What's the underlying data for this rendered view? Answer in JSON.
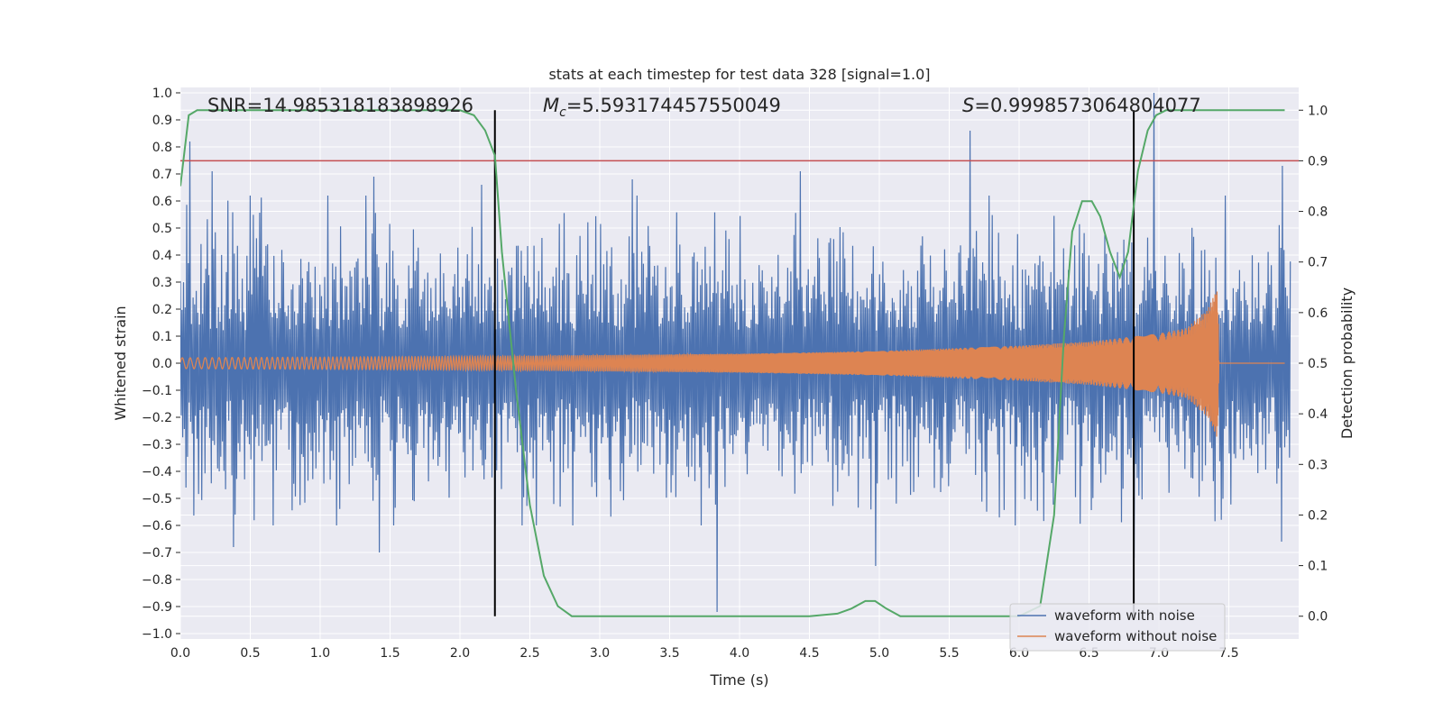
{
  "chart_data": {
    "type": "line",
    "title": "stats at each timestep for test data 328 [signal=1.0]",
    "xlabel": "Time (s)",
    "ylabel": "Whitened strain",
    "y2label": "Detection probability",
    "xlim": [
      0.0,
      8.0
    ],
    "ylim": [
      -1.02,
      1.02
    ],
    "y2lim": [
      -0.045,
      1.045
    ],
    "x_ticks": [
      "0.0",
      "0.5",
      "1.0",
      "1.5",
      "2.0",
      "2.5",
      "3.0",
      "3.5",
      "4.0",
      "4.5",
      "5.0",
      "5.5",
      "6.0",
      "6.5",
      "7.0",
      "7.5"
    ],
    "y_ticks": [
      "1.0",
      "0.9",
      "0.8",
      "0.7",
      "0.6",
      "0.5",
      "0.4",
      "0.3",
      "0.2",
      "0.1",
      "0.0",
      "−0.1",
      "−0.2",
      "−0.3",
      "−0.4",
      "−0.5",
      "−0.6",
      "−0.7",
      "−0.8",
      "−0.9",
      "−1.0"
    ],
    "y2_ticks": [
      "1.0",
      "0.9",
      "0.8",
      "0.7",
      "0.6",
      "0.5",
      "0.4",
      "0.3",
      "0.2",
      "0.1",
      "0.0"
    ],
    "grid": true,
    "legend_position": "lower-right",
    "annotations": {
      "snr": "SNR=14.985318183898926",
      "mc_prefix": "M",
      "mc_sub": "c",
      "mc_value": "=5.593174457550049",
      "s_prefix": "S",
      "s_value": "=0.9998573064804077"
    },
    "threshold": {
      "y2": 0.9,
      "color": "#c44e52"
    },
    "vlines": [
      2.25,
      6.82
    ],
    "series": [
      {
        "name": "waveform with noise",
        "color": "#4c72b0",
        "noise_envelope": {
          "x": [
            0.0,
            8.0
          ],
          "y": [
            -1.0,
            1.0
          ]
        },
        "peaks": [
          {
            "x": 0.07,
            "y": 0.82
          },
          {
            "x": 0.23,
            "y": 0.71
          },
          {
            "x": 1.38,
            "y": 0.69
          },
          {
            "x": 2.15,
            "y": 0.66
          },
          {
            "x": 3.23,
            "y": 0.68
          },
          {
            "x": 4.43,
            "y": 0.71
          },
          {
            "x": 5.65,
            "y": 0.86
          },
          {
            "x": 6.96,
            "y": 1.0
          },
          {
            "x": 7.88,
            "y": 0.73
          },
          {
            "x": 3.84,
            "y": -0.92
          },
          {
            "x": 1.42,
            "y": -0.7
          },
          {
            "x": 4.97,
            "y": -0.75
          },
          {
            "x": 6.82,
            "y": -0.72
          },
          {
            "x": 7.88,
            "y": -0.66
          },
          {
            "x": 0.38,
            "y": -0.68
          }
        ]
      },
      {
        "name": "waveform without noise",
        "color": "#dd8452",
        "chirp_envelope": {
          "x": [
            0.0,
            2.0,
            4.0,
            5.0,
            6.0,
            6.5,
            7.0,
            7.2,
            7.35,
            7.42,
            7.43,
            7.9
          ],
          "y": [
            0.02,
            0.025,
            0.035,
            0.045,
            0.065,
            0.08,
            0.11,
            0.13,
            0.2,
            0.28,
            0.0,
            0.0
          ]
        }
      },
      {
        "name": "",
        "color": "#55a868",
        "axis": "right",
        "x": [
          0.0,
          0.06,
          0.12,
          0.25,
          0.5,
          1.0,
          1.5,
          2.0,
          2.1,
          2.18,
          2.25,
          2.3,
          2.4,
          2.5,
          2.6,
          2.7,
          2.8,
          3.0,
          3.5,
          4.0,
          4.5,
          4.7,
          4.8,
          4.9,
          4.97,
          5.05,
          5.15,
          5.3,
          5.5,
          6.0,
          6.15,
          6.25,
          6.32,
          6.38,
          6.45,
          6.52,
          6.58,
          6.65,
          6.72,
          6.78,
          6.85,
          6.92,
          6.98,
          7.05,
          7.2,
          7.9
        ],
        "y": [
          0.85,
          0.99,
          1.0,
          1.0,
          1.0,
          1.0,
          1.0,
          1.0,
          0.99,
          0.96,
          0.91,
          0.72,
          0.45,
          0.22,
          0.08,
          0.02,
          0.0,
          0.0,
          0.0,
          0.0,
          0.0,
          0.005,
          0.015,
          0.03,
          0.03,
          0.015,
          0.0,
          0.0,
          0.0,
          0.0,
          0.02,
          0.2,
          0.55,
          0.76,
          0.82,
          0.82,
          0.79,
          0.72,
          0.67,
          0.72,
          0.88,
          0.96,
          0.99,
          1.0,
          1.0,
          1.0
        ]
      }
    ]
  }
}
